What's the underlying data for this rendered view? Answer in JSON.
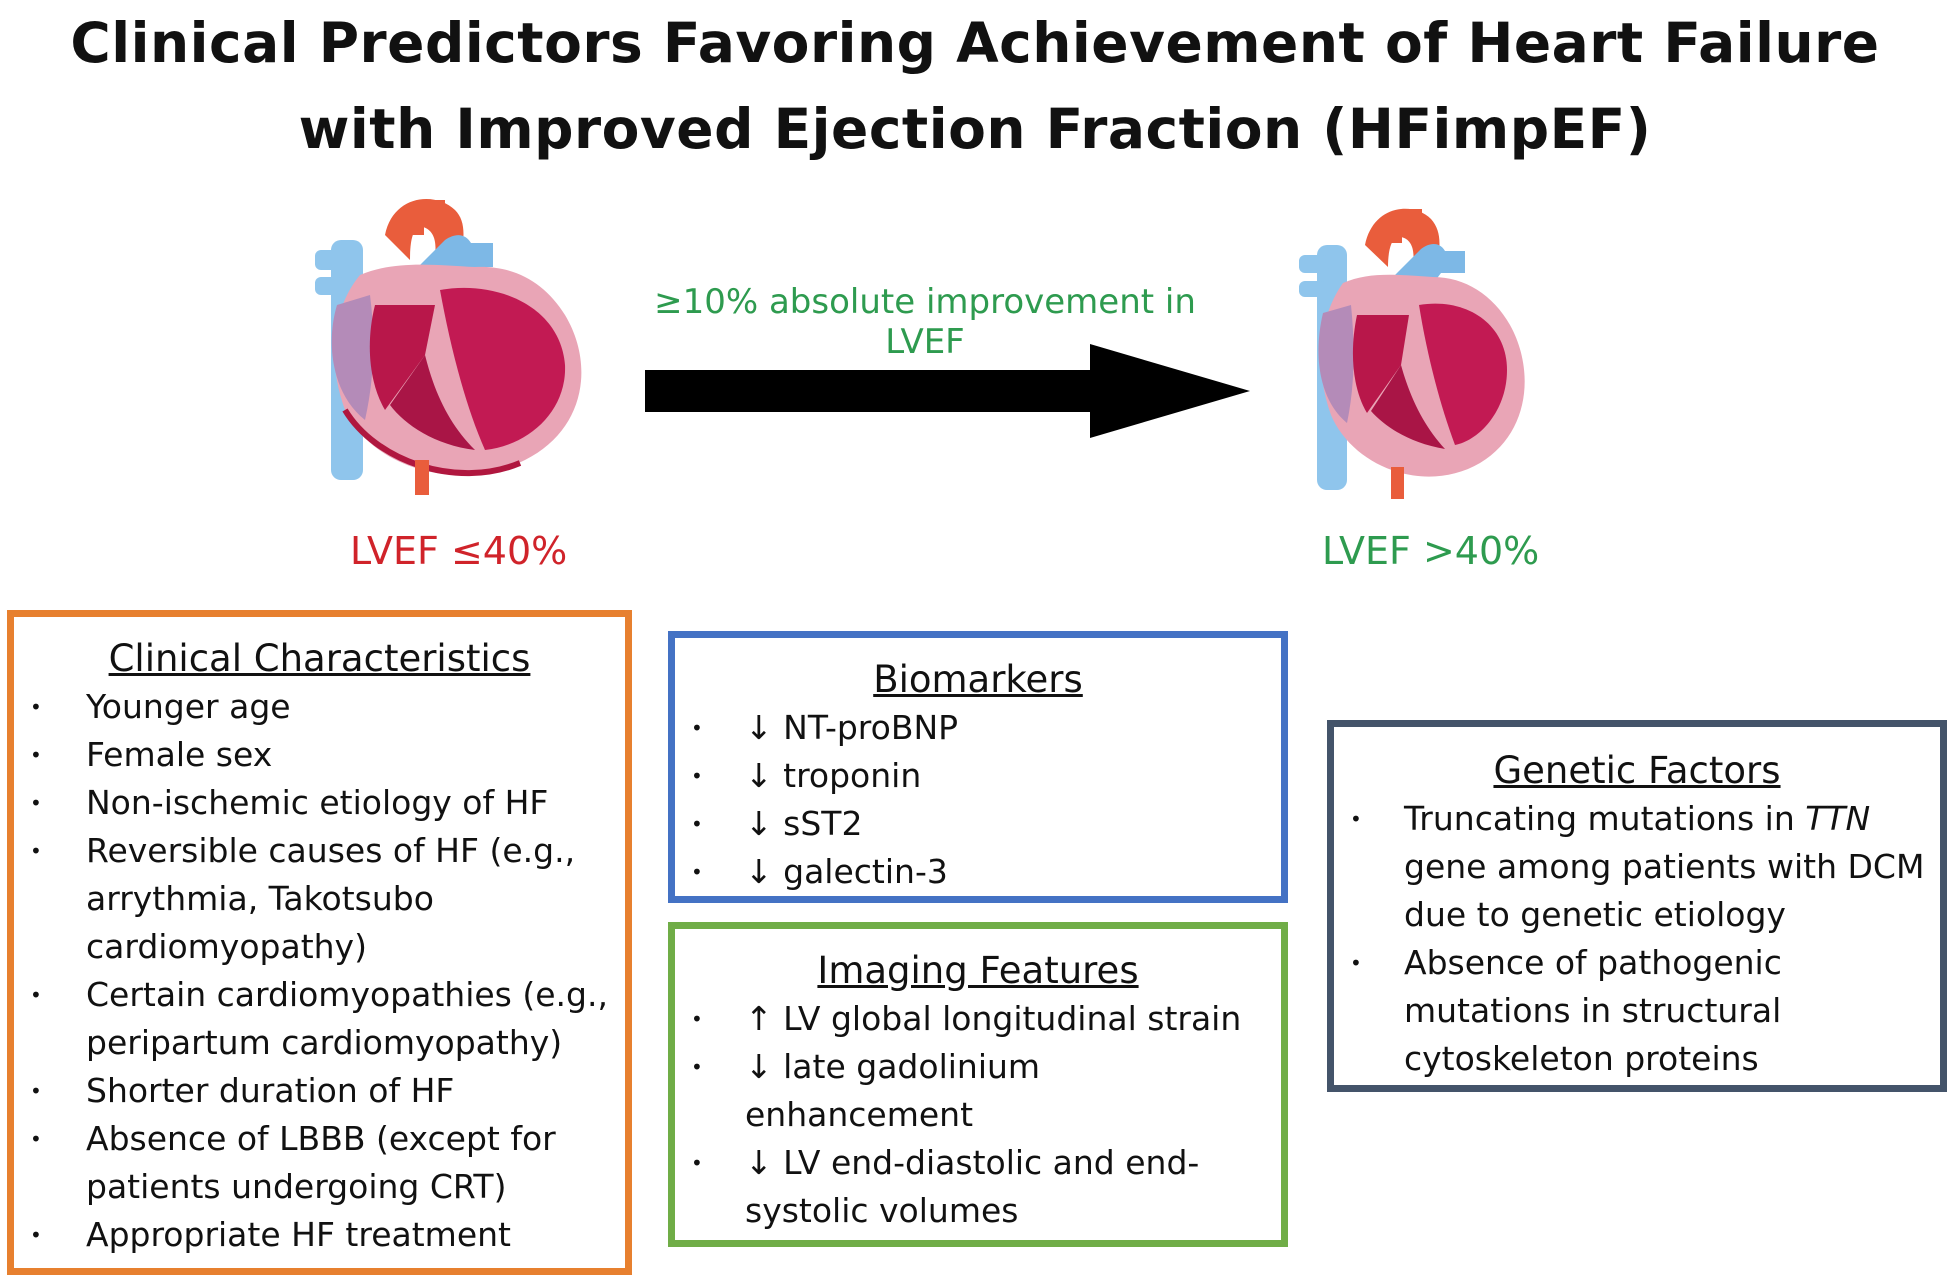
{
  "title": {
    "line1": "Clinical Predictors Favoring Achievement of Heart Failure",
    "line2": "with Improved Ejection Fraction (HFimpEF)"
  },
  "arrow_label": "≥10% absolute improvement in LVEF",
  "lvef_left": "LVEF ≤40%",
  "lvef_right": "LVEF >40%",
  "colors": {
    "clinical_border": "#e7802f",
    "biomarkers_border": "#4472c4",
    "imaging_border": "#70ad47",
    "genetic_border": "#44546a",
    "reduced_text": "#d0232a",
    "improved_text": "#2e9b4f"
  },
  "clinical": {
    "heading": "Clinical Characteristics",
    "items": [
      "Younger age",
      "Female sex",
      "Non-ischemic etiology of HF",
      "Reversible causes of HF (e.g., arrythmia, Takotsubo cardiomyopathy)",
      "Certain cardiomyopathies (e.g., peripartum cardiomyopathy)",
      "Shorter duration of HF",
      "Absence of LBBB (except for patients undergoing CRT)",
      "Appropriate HF treatment"
    ]
  },
  "biomarkers": {
    "heading": "Biomarkers",
    "items": [
      "↓ NT-proBNP",
      "↓ troponin",
      "↓ sST2",
      "↓ galectin-3"
    ]
  },
  "imaging": {
    "heading": "Imaging Features",
    "items": [
      "↑ LV global longitudinal strain",
      "↓ late gadolinium enhancement",
      "↓ LV end-diastolic and end-systolic volumes"
    ]
  },
  "genetic": {
    "heading": "Genetic Factors",
    "item1_pre": "Truncating mutations in ",
    "item1_gene": "TTN",
    "item1_post": " gene among patients with DCM due to genetic etiology",
    "item2": "Absence of pathogenic mutations in structural cytoskeleton proteins"
  },
  "icons": [
    "heart-left-icon",
    "heart-right-icon",
    "right-arrow-icon"
  ]
}
